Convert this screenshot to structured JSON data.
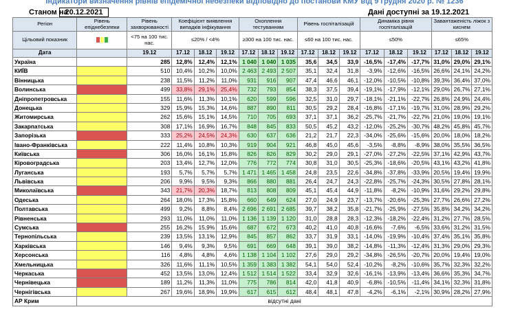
{
  "title": "Індикатори визначення рівнів епідемічної небезпеки відповідно до постанови КМУ від 9 грудня 2020 р. № 1236",
  "status_label": "Станом на",
  "status_date": "20.12.2021",
  "data_available": "Дані доступні за 19.12.2021",
  "colors": {
    "red": "#d9534f",
    "yellow": "#ffff66",
    "green": "#3cb043"
  },
  "headers": {
    "region": "Регіон",
    "level": "Рівень епіднебезпеки",
    "incidence": "Рівень захворюваності",
    "detection": "Коефіцієнт виявлення випадків інфікування",
    "testing": "Охоплення тестуванням",
    "hospital": "Рівень госпіталізацій",
    "dynamics": "Динаміка рівня госпіталізацій",
    "beds": "Завантаженість ліжок з киснем"
  },
  "targets": {
    "label": "Цільовий показник",
    "incidence": "<75 на 100 тис. нас.",
    "detection": "≤20% / <4%",
    "testing": "≥300 на 100 тис. нас.",
    "hospital": "≤60 на 100 тис. нас.",
    "dynamics": "≤50%",
    "beds": "≤65%"
  },
  "dates": {
    "label": "Дата",
    "incidence": "19.12",
    "triple": [
      "17.12",
      "18.12",
      "19.12"
    ]
  },
  "rows": [
    {
      "name": "Україна",
      "level": "",
      "v": [
        "285",
        "12,8%",
        "12,4%",
        "12,1%",
        "1 040",
        "1 040",
        "1 035",
        "35,6",
        "34,5",
        "33,9",
        "-16,5%",
        "-17,4%",
        "-17,7%",
        "31,0%",
        "29,0%",
        "29,1%"
      ]
    },
    {
      "name": "КИЇВ",
      "level": "yellow",
      "v": [
        "510",
        "10,4%",
        "10,2%",
        "10,0%",
        "2 463",
        "2 493",
        "2 507",
        "35,1",
        "32,4",
        "31,8",
        "-3,9%",
        "-12,6%",
        "-16,5%",
        "26,6%",
        "24,1%",
        "24,2%"
      ]
    },
    {
      "name": "Вінницька",
      "level": "yellow",
      "v": [
        "238",
        "11,5%",
        "11,2%",
        "11,0%",
        "931",
        "916",
        "907",
        "47,4",
        "46,6",
        "46,1",
        "-12,0%",
        "-10,5%",
        "-10,8%",
        "39,3%",
        "36,4%",
        "37,0%"
      ]
    },
    {
      "name": "Волинська",
      "level": "red",
      "v": [
        "499",
        "33,8%",
        "29,1%",
        "25,4%",
        "732",
        "793",
        "854",
        "38,3",
        "37,5",
        "39,4",
        "-19,1%",
        "-17,9%",
        "-12,1%",
        "29,0%",
        "26,7%",
        "27,1%"
      ]
    },
    {
      "name": "Дніпропетровська",
      "level": "yellow",
      "v": [
        "155",
        "11,6%",
        "11,3%",
        "10,1%",
        "620",
        "599",
        "596",
        "32,5",
        "31,0",
        "29,7",
        "-18,1%",
        "-21,1%",
        "-22,7%",
        "26,8%",
        "24,9%",
        "24,4%"
      ]
    },
    {
      "name": "Донецька",
      "level": "yellow",
      "v": [
        "329",
        "15,9%",
        "15,3%",
        "14,6%",
        "887",
        "890",
        "811",
        "30,5",
        "29,2",
        "28,4",
        "-16,8%",
        "-17,1%",
        "-19,7%",
        "31,0%",
        "28,9%",
        "29,2%"
      ]
    },
    {
      "name": "Житомирська",
      "level": "yellow",
      "v": [
        "262",
        "15,6%",
        "15,1%",
        "14,5%",
        "710",
        "705",
        "693",
        "37,1",
        "37,1",
        "36,2",
        "-25,7%",
        "-21,7%",
        "-22,7%",
        "21,0%",
        "19,0%",
        "19,1%"
      ]
    },
    {
      "name": "Закарпатська",
      "level": "yellow",
      "v": [
        "308",
        "17,1%",
        "16,9%",
        "16,7%",
        "848",
        "845",
        "833",
        "50,5",
        "45,2",
        "43,2",
        "-12,0%",
        "-25,2%",
        "-30,7%",
        "48,2%",
        "45,8%",
        "45,7%"
      ]
    },
    {
      "name": "Запорізька",
      "level": "red",
      "v": [
        "333",
        "25,2%",
        "24,5%",
        "24,3%",
        "630",
        "637",
        "636",
        "21,2",
        "21,7",
        "22,3",
        "-34,0%",
        "-25,6%",
        "-15,6%",
        "20,0%",
        "18,0%",
        "18,2%"
      ]
    },
    {
      "name": "Івано-Франківська",
      "level": "yellow",
      "v": [
        "222",
        "11,4%",
        "10,8%",
        "10,3%",
        "919",
        "904",
        "921",
        "46,8",
        "45,0",
        "45,6",
        "-3,5%",
        "-8,8%",
        "-8,9%",
        "38,0%",
        "35,5%",
        "36,5%"
      ]
    },
    {
      "name": "Київська",
      "level": "red",
      "v": [
        "306",
        "16,0%",
        "16,1%",
        "15,8%",
        "826",
        "826",
        "829",
        "30,2",
        "29,0",
        "29,1",
        "-27,0%",
        "-27,2%",
        "-22,5%",
        "37,1%",
        "42,9%",
        "43,7%"
      ]
    },
    {
      "name": "Кіровоградська",
      "level": "yellow",
      "v": [
        "203",
        "13,4%",
        "12,7%",
        "12,0%",
        "776",
        "772",
        "774",
        "30,8",
        "31,0",
        "30,5",
        "-25,3%",
        "-18,6%",
        "-20,5%",
        "43,1%",
        "43,2%",
        "41,8%"
      ]
    },
    {
      "name": "Луганська",
      "level": "yellow",
      "v": [
        "193",
        "5,7%",
        "5,7%",
        "5,7%",
        "1 471",
        "1 465",
        "1 458",
        "24,8",
        "23,5",
        "22,6",
        "-34,8%",
        "-37,8%",
        "-33,9%",
        "20,5%",
        "19,4%",
        "19,9%"
      ]
    },
    {
      "name": "Львівська",
      "level": "yellow",
      "v": [
        "206",
        "9,9%",
        "9,5%",
        "9,3%",
        "866",
        "880",
        "881",
        "26,4",
        "24,7",
        "24,3",
        "-22,8%",
        "-25,7%",
        "-24,3%",
        "30,5%",
        "27,8%",
        "28,1%"
      ]
    },
    {
      "name": "Миколаївська",
      "level": "red",
      "v": [
        "343",
        "21,7%",
        "20,3%",
        "18,7%",
        "813",
        "808",
        "809",
        "45,1",
        "45,4",
        "44,9",
        "-11,8%",
        "-8,2%",
        "-10,9%",
        "31,6%",
        "29,2%",
        "29,8%"
      ]
    },
    {
      "name": "Одеська",
      "level": "yellow",
      "v": [
        "264",
        "18,0%",
        "17,3%",
        "15,8%",
        "660",
        "649",
        "624",
        "27,0",
        "24,9",
        "23,7",
        "-13,7%",
        "-20,6%",
        "-25,3%",
        "27,7%",
        "26,6%",
        "27,2%"
      ]
    },
    {
      "name": "Полтавська",
      "level": "yellow",
      "v": [
        "499",
        "9,2%",
        "8,8%",
        "8,4%",
        "2 696",
        "2 691",
        "2 685",
        "39,7",
        "38,2",
        "35,8",
        "-21,7%",
        "-25,9%",
        "-27,5%",
        "35,8%",
        "34,2%",
        "34,2%"
      ]
    },
    {
      "name": "Рівненська",
      "level": "yellow",
      "v": [
        "293",
        "11,0%",
        "11,0%",
        "11,0%",
        "1 136",
        "1 139",
        "1 120",
        "31,0",
        "28,8",
        "28,3",
        "-12,3%",
        "-18,2%",
        "-22,4%",
        "31,2%",
        "27,7%",
        "28,5%"
      ]
    },
    {
      "name": "Сумська",
      "level": "red",
      "v": [
        "255",
        "16,2%",
        "15,9%",
        "15,6%",
        "687",
        "672",
        "673",
        "40,2",
        "41,0",
        "40,8",
        "-16,6%",
        "-7,6%",
        "-6,5%",
        "33,6%",
        "31,2%",
        "31,5%"
      ]
    },
    {
      "name": "Тернопільська",
      "level": "yellow",
      "v": [
        "239",
        "13,5%",
        "13,1%",
        "12,9%",
        "845",
        "857",
        "862",
        "33,7",
        "31,9",
        "33,1",
        "-14,0%",
        "-19,9%",
        "-10,4%",
        "37,4%",
        "35,1%",
        "35,8%"
      ]
    },
    {
      "name": "Харківська",
      "level": "yellow",
      "v": [
        "146",
        "9,4%",
        "9,3%",
        "9,5%",
        "691",
        "669",
        "648",
        "39,1",
        "39,0",
        "38,2",
        "-14,8%",
        "-11,3%",
        "-12,4%",
        "31,3%",
        "29,0%",
        "29,3%"
      ]
    },
    {
      "name": "Херсонська",
      "level": "yellow",
      "v": [
        "116",
        "4,8%",
        "4,8%",
        "4,6%",
        "1 138",
        "1 104",
        "1 102",
        "27,6",
        "29,0",
        "29,2",
        "-34,8%",
        "-26,5%",
        "-20,7%",
        "20,0%",
        "19,4%",
        "19,0%"
      ]
    },
    {
      "name": "Хмельницька",
      "level": "yellow",
      "v": [
        "326",
        "11,6%",
        "11,1%",
        "10,5%",
        "1 359",
        "1 383",
        "1 382",
        "54,1",
        "54,0",
        "52,4",
        "-10,2%",
        "-8,2%",
        "-10,6%",
        "35,7%",
        "32,3%",
        "32,2%"
      ]
    },
    {
      "name": "Черкаська",
      "level": "red",
      "v": [
        "452",
        "13,5%",
        "13,0%",
        "12,4%",
        "1 512",
        "1 514",
        "1 522",
        "33,4",
        "32,9",
        "32,6",
        "-16,1%",
        "-13,9%",
        "-13,4%",
        "36,6%",
        "35,3%",
        "34,7%"
      ]
    },
    {
      "name": "Чернівецька",
      "level": "red",
      "v": [
        "189",
        "11,2%",
        "11,3%",
        "11,0%",
        "775",
        "786",
        "814",
        "42,0",
        "41,8",
        "40,9",
        "-6,8%",
        "-10,5%",
        "-11,4%",
        "34,1%",
        "32,3%",
        "31,8%"
      ]
    },
    {
      "name": "Чернігівська",
      "level": "yellow",
      "v": [
        "267",
        "19,6%",
        "18,9%",
        "19,9%",
        "617",
        "615",
        "612",
        "48,4",
        "48,1",
        "47,8",
        "-4,2%",
        "-6,1%",
        "-2,1%",
        "30,9%",
        "28,2%",
        "27,9%"
      ]
    }
  ],
  "crimea": {
    "name": "АР Крим",
    "note": "відсутні дані"
  }
}
